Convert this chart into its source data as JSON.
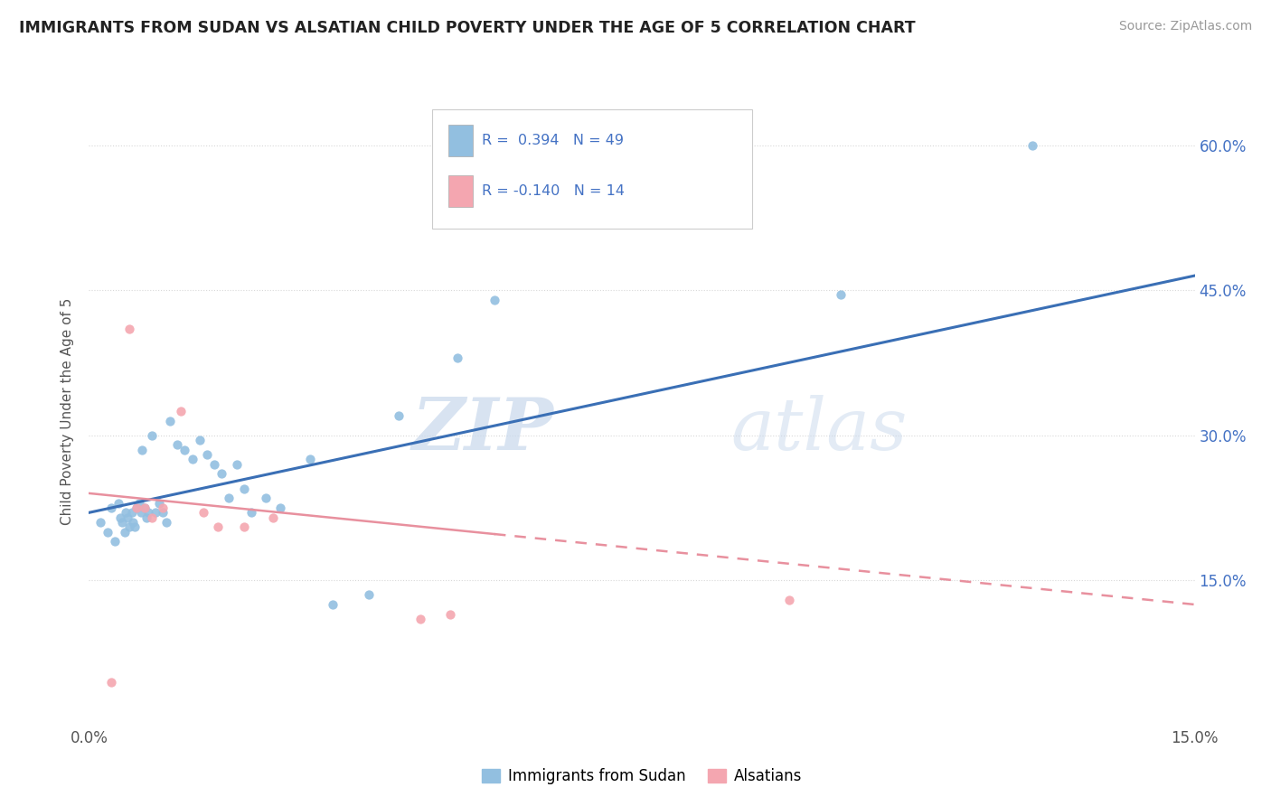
{
  "title": "IMMIGRANTS FROM SUDAN VS ALSATIAN CHILD POVERTY UNDER THE AGE OF 5 CORRELATION CHART",
  "source": "Source: ZipAtlas.com",
  "ylabel": "Child Poverty Under the Age of 5",
  "legend_blue_r": "R =  0.394",
  "legend_blue_n": "N = 49",
  "legend_pink_r": "R = -0.140",
  "legend_pink_n": "N = 14",
  "legend_label_blue": "Immigrants from Sudan",
  "legend_label_pink": "Alsatians",
  "blue_color": "#92bfe0",
  "pink_color": "#f4a6b0",
  "blue_line_color": "#3a6fb5",
  "pink_line_color": "#e8909e",
  "watermark_zip": "ZIP",
  "watermark_atlas": "atlas",
  "xlim": [
    0.0,
    15.0
  ],
  "ylim": [
    0.0,
    65.0
  ],
  "yticks": [
    15.0,
    30.0,
    45.0,
    60.0
  ],
  "blue_scatter_x": [
    0.15,
    0.25,
    0.3,
    0.35,
    0.4,
    0.42,
    0.45,
    0.48,
    0.5,
    0.52,
    0.55,
    0.58,
    0.6,
    0.62,
    0.65,
    0.68,
    0.7,
    0.72,
    0.75,
    0.78,
    0.8,
    0.85,
    0.9,
    0.95,
    1.0,
    1.05,
    1.1,
    1.2,
    1.3,
    1.4,
    1.5,
    1.6,
    1.7,
    1.8,
    1.9,
    2.0,
    2.1,
    2.2,
    2.4,
    2.6,
    3.0,
    3.3,
    3.8,
    4.2,
    5.0,
    5.5,
    7.5,
    10.2,
    12.8
  ],
  "blue_scatter_y": [
    21.0,
    20.0,
    22.5,
    19.0,
    23.0,
    21.5,
    21.0,
    20.0,
    22.0,
    21.5,
    20.5,
    22.0,
    21.0,
    20.5,
    22.5,
    23.0,
    22.0,
    28.5,
    22.5,
    21.5,
    22.0,
    30.0,
    22.0,
    23.0,
    22.0,
    21.0,
    31.5,
    29.0,
    28.5,
    27.5,
    29.5,
    28.0,
    27.0,
    26.0,
    23.5,
    27.0,
    24.5,
    22.0,
    23.5,
    22.5,
    27.5,
    12.5,
    13.5,
    32.0,
    38.0,
    44.0,
    56.0,
    44.5,
    60.0
  ],
  "pink_scatter_x": [
    0.3,
    0.55,
    0.65,
    0.75,
    0.85,
    1.0,
    1.25,
    1.55,
    1.75,
    2.1,
    2.5,
    4.5,
    4.9,
    9.5
  ],
  "pink_scatter_y": [
    4.5,
    41.0,
    22.5,
    22.5,
    21.5,
    22.5,
    32.5,
    22.0,
    20.5,
    20.5,
    21.5,
    11.0,
    11.5,
    13.0
  ],
  "blue_trend": [
    0.0,
    22.0,
    15.0,
    46.5
  ],
  "pink_trend": [
    0.0,
    24.0,
    15.0,
    12.5
  ],
  "background_color": "#ffffff",
  "grid_color": "#d8d8d8"
}
